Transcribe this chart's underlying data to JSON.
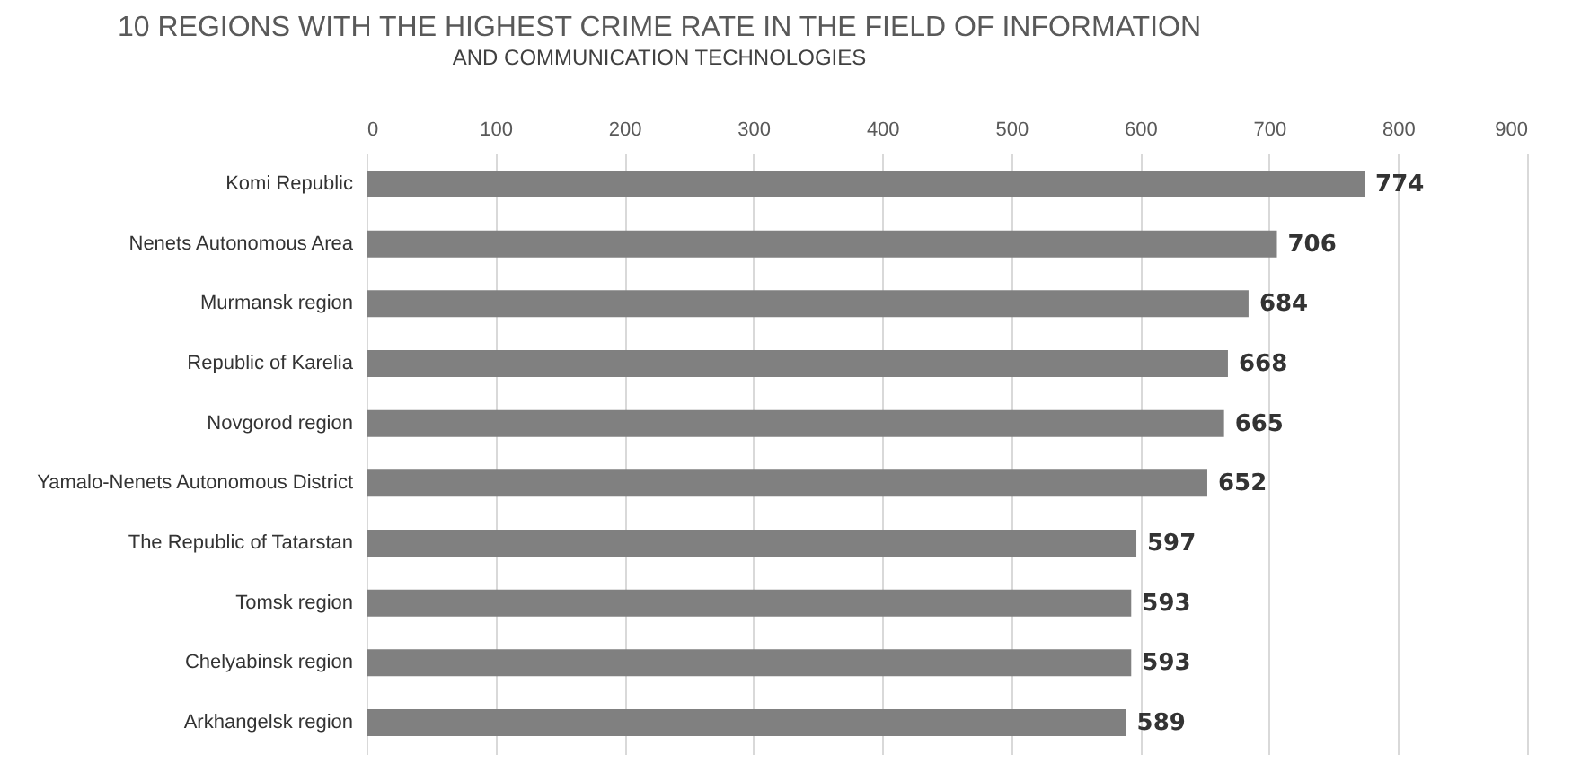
{
  "chart_data": {
    "type": "bar",
    "orientation": "horizontal",
    "title": "10 REGIONS WITH THE HIGHEST CRIME RATE IN THE FIELD OF INFORMATION",
    "subtitle": "AND COMMUNICATION TECHNOLOGIES",
    "categories": [
      "Komi Republic",
      "Nenets Autonomous Area",
      "Murmansk region",
      "Republic of Karelia",
      "Novgorod region",
      "Yamalo-Nenets Autonomous District",
      "The Republic of Tatarstan",
      "Tomsk region",
      "Chelyabinsk region",
      "Arkhangelsk region"
    ],
    "values": [
      774,
      706,
      684,
      668,
      665,
      652,
      597,
      593,
      593,
      589
    ],
    "color": "#808080",
    "xlim": [
      0,
      900
    ],
    "xticks": [
      0,
      100,
      200,
      300,
      400,
      500,
      600,
      700,
      800,
      900
    ],
    "grid": "x",
    "data_labels": true
  }
}
